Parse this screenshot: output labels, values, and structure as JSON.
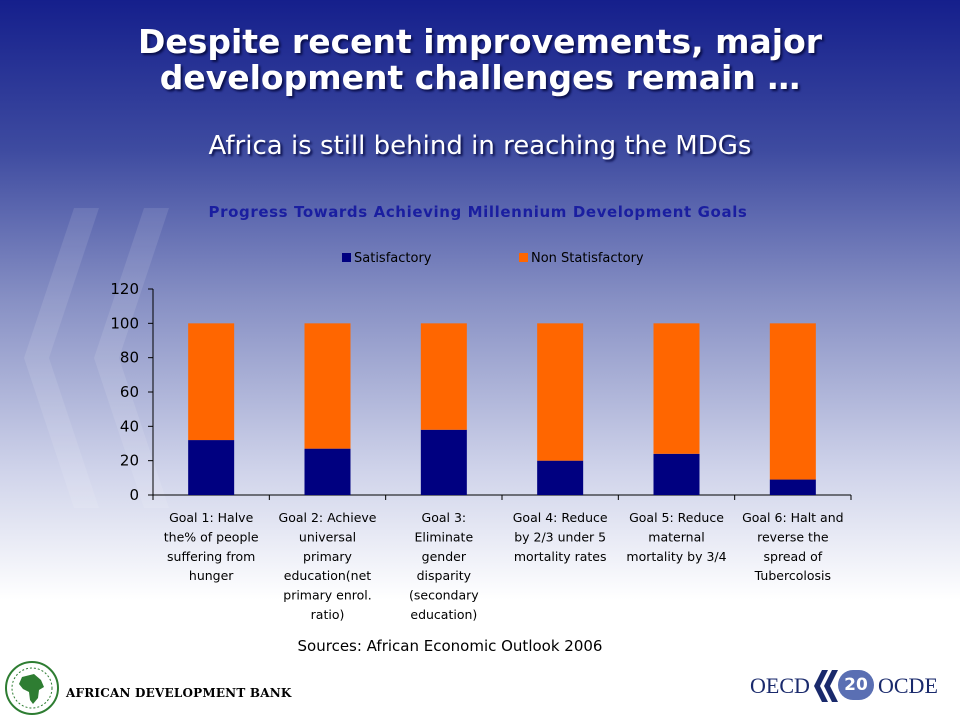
{
  "slide": {
    "title_line1": "Despite recent improvements, major",
    "title_line2": "development challenges remain …",
    "subtitle": "Africa is still behind in reaching the MDGs",
    "sources": "Sources: African Economic Outlook 2006",
    "footer_org": "AFRICAN DEVELOPMENT BANK",
    "oecd_left": "OECD",
    "oecd_right": "OCDE",
    "page_number": "20"
  },
  "icons": {
    "afdb_logo": "afdb-africa-seal-icon",
    "oecd_logo": "oecd-double-chevron-icon",
    "background_decoration": "double-chevron-watermark-icon"
  },
  "colors": {
    "title_text": "#ffffff",
    "chart_title": "#1a1ea0",
    "satisfactory": "#000080",
    "non_satisfactory": "#ff6600"
  },
  "chart_data": {
    "type": "bar",
    "stacked": true,
    "title": "Progress Towards Achieving Millennium Development Goals",
    "ylim": [
      0,
      120
    ],
    "yticks": [
      0,
      20,
      40,
      60,
      80,
      100,
      120
    ],
    "legend_position": "top",
    "categories": [
      [
        "Goal 1: Halve",
        "the%  of people",
        "suffering from",
        "hunger"
      ],
      [
        "Goal 2: Achieve",
        "universal",
        "primary",
        "education(net",
        "primary enrol.",
        "ratio)"
      ],
      [
        "Goal 3:",
        "Eliminate",
        "gender",
        "disparity",
        "(secondary",
        "education)"
      ],
      [
        "Goal 4: Reduce",
        "by 2/3 under 5",
        "mortality rates"
      ],
      [
        "Goal 5: Reduce",
        "maternal",
        "mortality by 3/4"
      ],
      [
        "Goal 6: Halt and",
        "reverse the",
        "spread of",
        "Tubercolosis"
      ]
    ],
    "series": [
      {
        "name": "Satisfactory",
        "color": "#000080",
        "values": [
          32,
          27,
          38,
          20,
          24,
          9
        ]
      },
      {
        "name": "Non Statisfactory",
        "color": "#ff6600",
        "values": [
          68,
          73,
          62,
          80,
          76,
          91
        ]
      }
    ]
  }
}
